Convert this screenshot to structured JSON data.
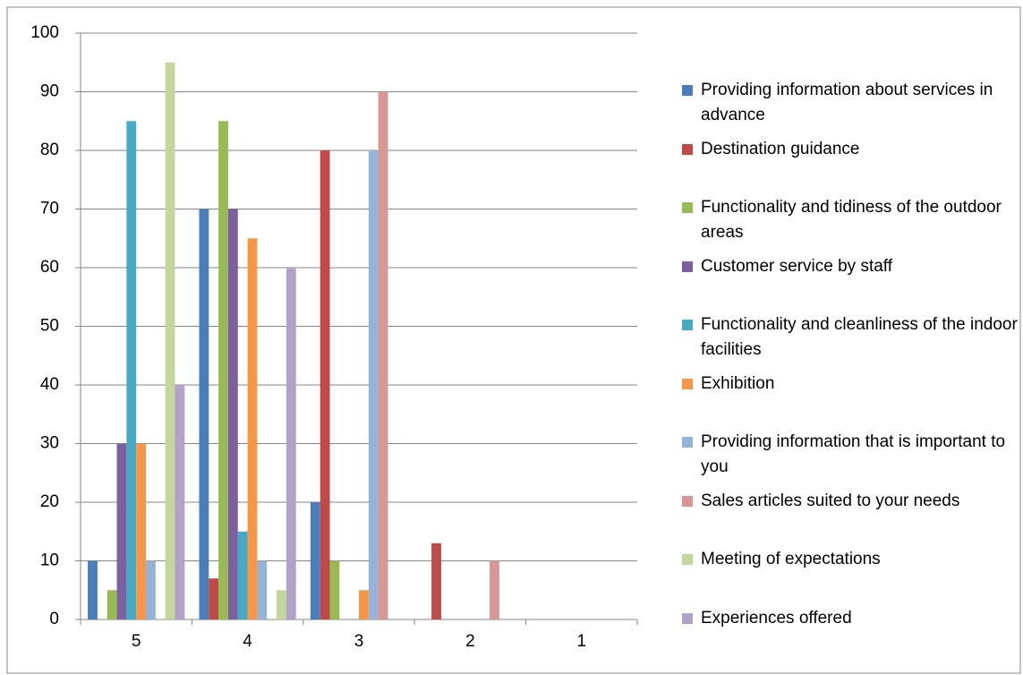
{
  "chart_data": {
    "type": "bar",
    "categories": [
      "5",
      "4",
      "3",
      "2",
      "1"
    ],
    "series": [
      {
        "name": "Providing information about services in advance",
        "color": "#4a7ebb",
        "values": [
          10,
          70,
          20,
          0,
          0
        ]
      },
      {
        "name": "Destination guidance",
        "color": "#be4b48",
        "values": [
          0,
          7,
          80,
          13,
          0
        ]
      },
      {
        "name": "Functionality and tidiness of the outdoor areas",
        "color": "#98b954",
        "values": [
          5,
          85,
          10,
          0,
          0
        ]
      },
      {
        "name": "Customer service by staff",
        "color": "#7d60a0",
        "values": [
          30,
          70,
          0,
          0,
          0
        ]
      },
      {
        "name": "Functionality and cleanliness of the indoor facilities",
        "color": "#46aac5",
        "values": [
          85,
          15,
          0,
          0,
          0
        ]
      },
      {
        "name": "Exhibition",
        "color": "#f79646",
        "values": [
          30,
          65,
          5,
          0,
          0
        ]
      },
      {
        "name": "Providing information that is important to you",
        "color": "#95b3d7",
        "values": [
          10,
          10,
          80,
          0,
          0
        ]
      },
      {
        "name": "Sales articles suited to your needs",
        "color": "#d99694",
        "values": [
          0,
          0,
          90,
          10,
          0
        ]
      },
      {
        "name": "Meeting of expectations",
        "color": "#c3d69b",
        "values": [
          95,
          5,
          0,
          0,
          0
        ]
      },
      {
        "name": "Experiences offered",
        "color": "#b3a2c7",
        "values": [
          40,
          60,
          0,
          0,
          0
        ]
      }
    ],
    "ylim": [
      0,
      100
    ],
    "yticks": [
      0,
      10,
      20,
      30,
      40,
      50,
      60,
      70,
      80,
      90,
      100
    ],
    "grid": true,
    "legend": "right"
  }
}
